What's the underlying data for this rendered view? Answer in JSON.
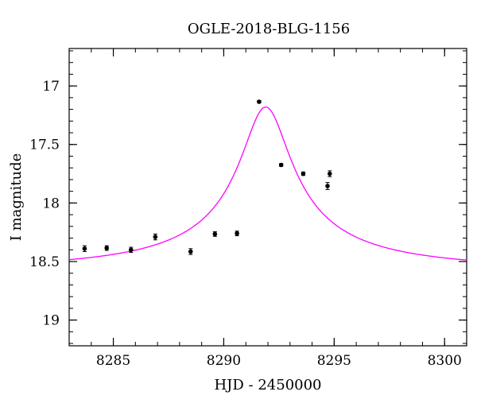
{
  "chart_data": {
    "type": "scatter",
    "title": "OGLE-2018-BLG-1156",
    "xlabel": "HJD - 2450000",
    "ylabel": "I magnitude",
    "xlim": [
      8283,
      8301
    ],
    "ylim": [
      19.22,
      16.68
    ],
    "y_inverted": true,
    "x_major_ticks": [
      8285,
      8290,
      8295,
      8300
    ],
    "x_tick_labels": [
      "8285",
      "8290",
      "8295",
      "8300"
    ],
    "x_minor_step": 1,
    "y_major_ticks": [
      17,
      17.5,
      18,
      18.5,
      19
    ],
    "y_tick_labels": [
      "17",
      "17.5",
      "18",
      "18.5",
      "19"
    ],
    "y_minor_step": 0.1,
    "grid": false,
    "series": [
      {
        "kind": "points",
        "color": "#000000",
        "points": [
          {
            "x": 8283.7,
            "y": 18.39,
            "err": 0.025
          },
          {
            "x": 8284.7,
            "y": 18.385,
            "err": 0.02
          },
          {
            "x": 8285.8,
            "y": 18.4,
            "err": 0.022
          },
          {
            "x": 8286.9,
            "y": 18.29,
            "err": 0.025
          },
          {
            "x": 8288.5,
            "y": 18.415,
            "err": 0.025
          },
          {
            "x": 8289.6,
            "y": 18.265,
            "err": 0.02
          },
          {
            "x": 8290.6,
            "y": 18.26,
            "err": 0.02
          },
          {
            "x": 8291.6,
            "y": 17.135,
            "err": 0.01
          },
          {
            "x": 8292.6,
            "y": 17.675,
            "err": 0.012
          },
          {
            "x": 8293.6,
            "y": 17.75,
            "err": 0.015
          },
          {
            "x": 8294.7,
            "y": 17.855,
            "err": 0.03
          },
          {
            "x": 8294.8,
            "y": 17.75,
            "err": 0.025
          }
        ]
      },
      {
        "kind": "model-curve",
        "color": "#ff00ff",
        "t0": 8291.9,
        "baseline": 18.56,
        "peak": 17.18,
        "tE": 10,
        "u0": 0.115
      }
    ]
  }
}
